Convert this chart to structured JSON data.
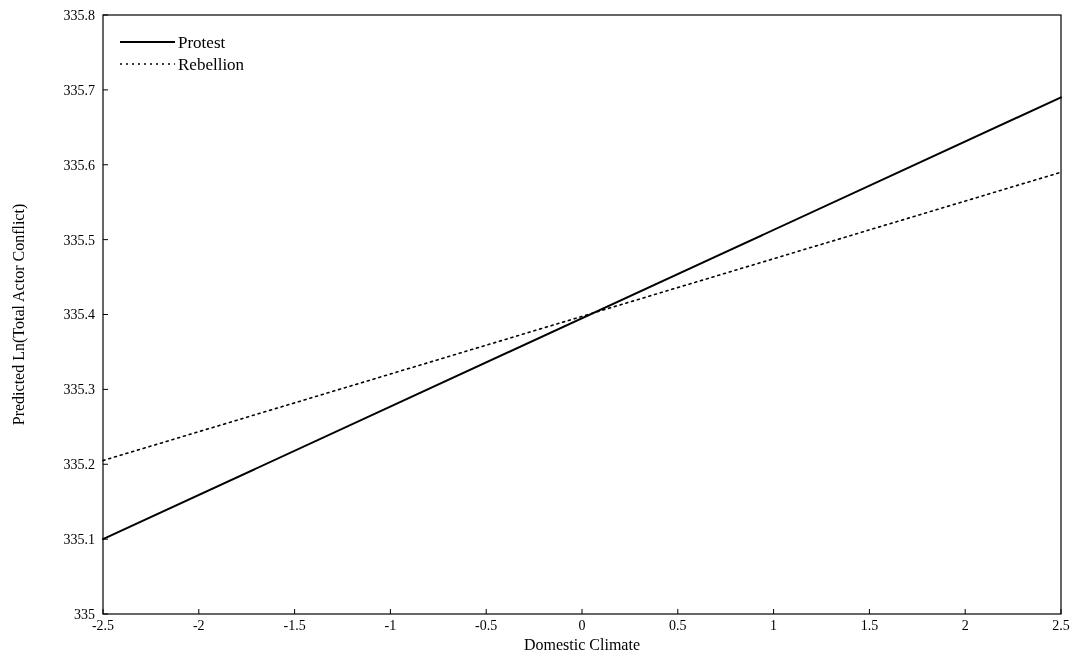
{
  "chart_data": {
    "type": "line",
    "xlabel": "Domestic Climate",
    "ylabel": "Predicted Ln(Total Actor Conflict)",
    "x": [
      -2.5,
      2.5
    ],
    "series": [
      {
        "name": "Protest",
        "color": "#000000",
        "values": [
          335.1,
          335.69
        ],
        "line_style": "solid"
      },
      {
        "name": "Rebellion",
        "color": "#000000",
        "values": [
          335.205,
          335.59
        ],
        "line_style": "dotted"
      }
    ],
    "xlim": [
      -2.5,
      2.5
    ],
    "xticks": [
      -2.5,
      -2,
      -1.5,
      -1,
      -0.5,
      0,
      0.5,
      1,
      1.5,
      2,
      2.5
    ],
    "ylim": [
      335,
      335.8
    ],
    "yticks": [
      335,
      335.1,
      335.2,
      335.3,
      335.4,
      335.5,
      335.6,
      335.7,
      335.8
    ],
    "grid": false,
    "legend": "top left",
    "marker": "none"
  }
}
